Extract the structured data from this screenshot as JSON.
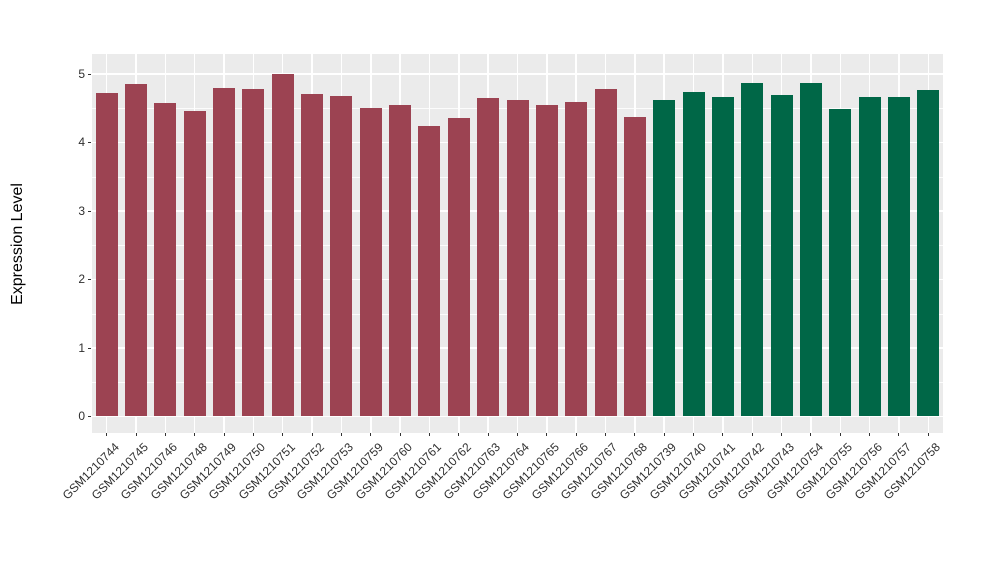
{
  "chart_data": {
    "type": "bar",
    "title": "",
    "xlabel": "",
    "ylabel": "Expression Level",
    "ylim": [
      0,
      5
    ],
    "y_ticks": [
      0,
      1,
      2,
      3,
      4,
      5
    ],
    "y_minor_ticks": [
      0.5,
      1.5,
      2.5,
      3.5,
      4.5
    ],
    "grid": true,
    "legend_position": "none",
    "panel_background": "#EBEBEB",
    "grid_color": "#FFFFFF",
    "axis_text_color": "#2F2F2F",
    "categories": [
      "GSM1210744",
      "GSM1210745",
      "GSM1210746",
      "GSM1210748",
      "GSM1210749",
      "GSM1210750",
      "GSM1210751",
      "GSM1210752",
      "GSM1210753",
      "GSM1210759",
      "GSM1210760",
      "GSM1210761",
      "GSM1210762",
      "GSM1210763",
      "GSM1210764",
      "GSM1210765",
      "GSM1210766",
      "GSM1210767",
      "GSM1210768",
      "GSM1210739",
      "GSM1210740",
      "GSM1210741",
      "GSM1210742",
      "GSM1210743",
      "GSM1210754",
      "GSM1210755",
      "GSM1210756",
      "GSM1210757",
      "GSM1210758"
    ],
    "values": [
      4.72,
      4.85,
      4.57,
      4.46,
      4.8,
      4.78,
      5.0,
      4.7,
      4.68,
      4.5,
      4.55,
      4.24,
      4.35,
      4.65,
      4.62,
      4.55,
      4.59,
      4.78,
      4.37,
      4.62,
      4.73,
      4.66,
      4.86,
      4.69,
      4.86,
      4.48,
      4.66,
      4.66,
      4.76
    ],
    "groups": [
      0,
      0,
      0,
      0,
      0,
      0,
      0,
      0,
      0,
      0,
      0,
      0,
      0,
      0,
      0,
      0,
      0,
      0,
      0,
      1,
      1,
      1,
      1,
      1,
      1,
      1,
      1,
      1,
      1
    ],
    "group_colors": [
      "#9C4352",
      "#006747"
    ]
  }
}
